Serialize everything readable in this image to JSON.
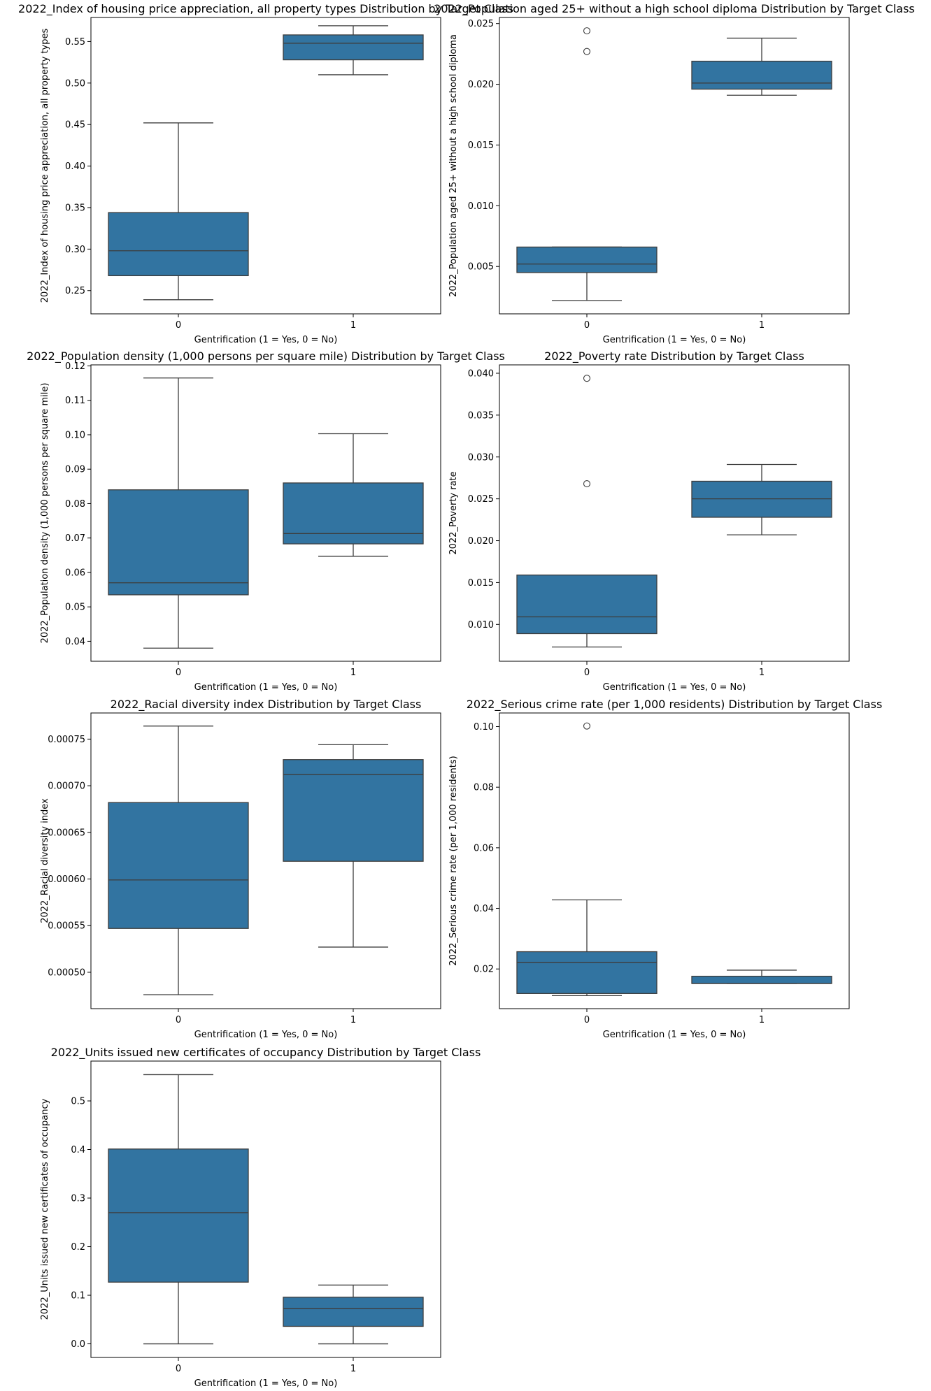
{
  "colors": {
    "box_fill": "#3274a1",
    "line": "#3d3d3d",
    "frame": "#000000",
    "background": "#ffffff"
  },
  "chart_data": [
    {
      "type": "box",
      "title": "2022_Index of housing price appreciation, all property types Distribution by Target Class",
      "xlabel": "Gentrification (1 = Yes, 0 = No)",
      "ylabel": "2022_Index of housing price appreciation, all property types",
      "categories": [
        "0",
        "1"
      ],
      "ylim": [
        0.222,
        0.579
      ],
      "yticks": [
        0.25,
        0.3,
        0.35,
        0.4,
        0.45,
        0.5,
        0.55
      ],
      "yticklabels": [
        "0.25",
        "0.30",
        "0.35",
        "0.40",
        "0.45",
        "0.50",
        "0.55"
      ],
      "boxes": [
        {
          "category": "0",
          "whislo": 0.239,
          "q1": 0.268,
          "median": 0.298,
          "q3": 0.344,
          "whishi": 0.452,
          "fliers": []
        },
        {
          "category": "1",
          "whislo": 0.51,
          "q1": 0.528,
          "median": 0.548,
          "q3": 0.558,
          "whishi": 0.569,
          "fliers": []
        }
      ]
    },
    {
      "type": "box",
      "title": "2022_Population aged 25+ without a high school diploma Distribution by Target Class",
      "xlabel": "Gentrification (1 = Yes, 0 = No)",
      "ylabel": "2022_Population aged 25+ without a high school diploma",
      "categories": [
        "0",
        "1"
      ],
      "ylim": [
        0.0011,
        0.0255
      ],
      "yticks": [
        0.005,
        0.01,
        0.015,
        0.02,
        0.025
      ],
      "yticklabels": [
        "0.005",
        "0.010",
        "0.015",
        "0.020",
        "0.025"
      ],
      "boxes": [
        {
          "category": "0",
          "whislo": 0.0022,
          "q1": 0.0045,
          "median": 0.0052,
          "q3": 0.0066,
          "whishi": 0.0066,
          "fliers": [
            0.0227,
            0.0244
          ]
        },
        {
          "category": "1",
          "whislo": 0.0191,
          "q1": 0.0196,
          "median": 0.0201,
          "q3": 0.0219,
          "whishi": 0.0238,
          "fliers": []
        }
      ]
    },
    {
      "type": "box",
      "title": "2022_Population density (1,000 persons per square mile) Distribution by Target Class",
      "xlabel": "Gentrification (1 = Yes, 0 = No)",
      "ylabel": "2022_Population density (1,000 persons per square mile)",
      "categories": [
        "0",
        "1"
      ],
      "ylim": [
        0.0342,
        0.1203
      ],
      "yticks": [
        0.04,
        0.05,
        0.06,
        0.07,
        0.08,
        0.09,
        0.1,
        0.11,
        0.12
      ],
      "yticklabels": [
        "0.04",
        "0.05",
        "0.06",
        "0.07",
        "0.08",
        "0.09",
        "0.10",
        "0.11",
        "0.12"
      ],
      "boxes": [
        {
          "category": "0",
          "whislo": 0.038,
          "q1": 0.0535,
          "median": 0.057,
          "q3": 0.084,
          "whishi": 0.1165,
          "fliers": []
        },
        {
          "category": "1",
          "whislo": 0.0647,
          "q1": 0.0683,
          "median": 0.0713,
          "q3": 0.086,
          "whishi": 0.1003,
          "fliers": []
        }
      ]
    },
    {
      "type": "box",
      "title": "2022_Poverty rate Distribution by Target Class",
      "xlabel": "Gentrification (1 = Yes, 0 = No)",
      "ylabel": "2022_Poverty rate",
      "categories": [
        "0",
        "1"
      ],
      "ylim": [
        0.0056,
        0.041
      ],
      "yticks": [
        0.01,
        0.015,
        0.02,
        0.025,
        0.03,
        0.035,
        0.04
      ],
      "yticklabels": [
        "0.010",
        "0.015",
        "0.020",
        "0.025",
        "0.030",
        "0.035",
        "0.040"
      ],
      "boxes": [
        {
          "category": "0",
          "whislo": 0.0073,
          "q1": 0.0089,
          "median": 0.0109,
          "q3": 0.0159,
          "whishi": 0.0159,
          "fliers": [
            0.0268,
            0.0394
          ]
        },
        {
          "category": "1",
          "whislo": 0.0207,
          "q1": 0.0228,
          "median": 0.025,
          "q3": 0.0271,
          "whishi": 0.0291,
          "fliers": []
        }
      ]
    },
    {
      "type": "box",
      "title": "2022_Racial diversity index Distribution by Target Class",
      "xlabel": "Gentrification (1 = Yes, 0 = No)",
      "ylabel": "2022_Racial diversity index",
      "categories": [
        "0",
        "1"
      ],
      "ylim": [
        0.000461,
        0.000778
      ],
      "yticks": [
        0.0005,
        0.00055,
        0.0006,
        0.00065,
        0.0007,
        0.00075
      ],
      "yticklabels": [
        "0.00050",
        "0.00055",
        "0.00060",
        "0.00065",
        "0.00070",
        "0.00075"
      ],
      "boxes": [
        {
          "category": "0",
          "whislo": 0.000476,
          "q1": 0.000547,
          "median": 0.000599,
          "q3": 0.000682,
          "whishi": 0.000764,
          "fliers": []
        },
        {
          "category": "1",
          "whislo": 0.000527,
          "q1": 0.000619,
          "median": 0.000712,
          "q3": 0.000728,
          "whishi": 0.000744,
          "fliers": []
        }
      ]
    },
    {
      "type": "box",
      "title": "2022_Serious crime rate (per 1,000 residents) Distribution by Target Class",
      "xlabel": "Gentrification (1 = Yes, 0 = No)",
      "ylabel": "2022_Serious crime rate (per 1,000 residents)",
      "categories": [
        "0",
        "1"
      ],
      "ylim": [
        0.0069,
        0.1045
      ],
      "yticks": [
        0.02,
        0.04,
        0.06,
        0.08,
        0.1
      ],
      "yticklabels": [
        "0.02",
        "0.04",
        "0.06",
        "0.08",
        "0.10"
      ],
      "boxes": [
        {
          "category": "0",
          "whislo": 0.0112,
          "q1": 0.0119,
          "median": 0.0222,
          "q3": 0.0257,
          "whishi": 0.0428,
          "fliers": [
            0.1002
          ]
        },
        {
          "category": "1",
          "whislo": 0.0152,
          "q1": 0.0152,
          "median": 0.0152,
          "q3": 0.0176,
          "whishi": 0.0196,
          "fliers": []
        }
      ]
    },
    {
      "type": "box",
      "title": "2022_Units issued new certificates of occupancy Distribution by Target Class",
      "xlabel": "Gentrification (1 = Yes, 0 = No)",
      "ylabel": "2022_Units issued new certificates of occupancy",
      "categories": [
        "0",
        "1"
      ],
      "ylim": [
        -0.028,
        0.582
      ],
      "yticks": [
        0.0,
        0.1,
        0.2,
        0.3,
        0.4,
        0.5
      ],
      "yticklabels": [
        "0.0",
        "0.1",
        "0.2",
        "0.3",
        "0.4",
        "0.5"
      ],
      "boxes": [
        {
          "category": "0",
          "whislo": 0.0,
          "q1": 0.127,
          "median": 0.27,
          "q3": 0.401,
          "whishi": 0.554,
          "fliers": []
        },
        {
          "category": "1",
          "whislo": 0.0,
          "q1": 0.036,
          "median": 0.073,
          "q3": 0.096,
          "whishi": 0.121,
          "fliers": []
        }
      ]
    }
  ]
}
